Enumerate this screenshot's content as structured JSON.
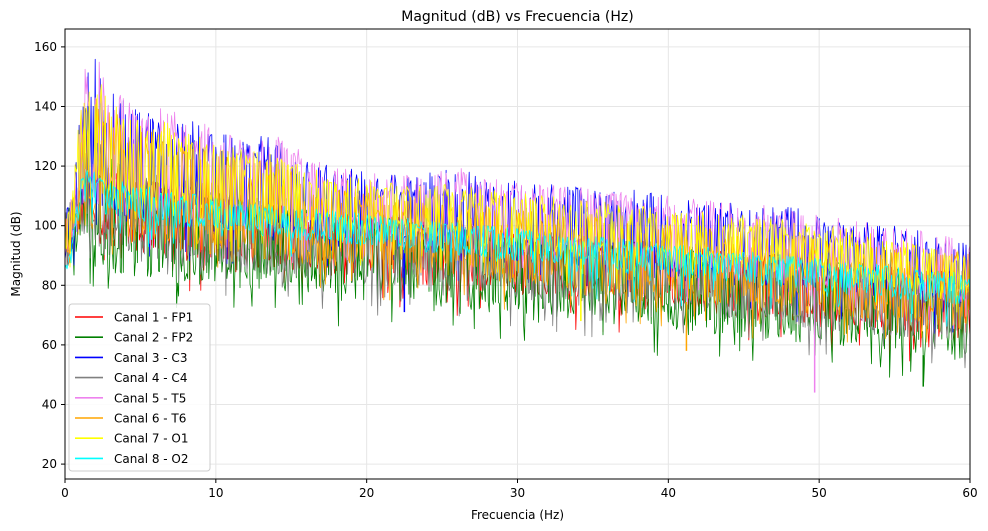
{
  "chart_data": {
    "type": "line",
    "title": "Magnitud (dB) vs Frecuencia (Hz)",
    "xlabel": "Frecuencia (Hz)",
    "ylabel": "Magnitud (dB)",
    "xlim": [
      0,
      60
    ],
    "ylim": [
      15,
      166
    ],
    "xticks": [
      0,
      10,
      20,
      30,
      40,
      50,
      60
    ],
    "yticks": [
      20,
      40,
      60,
      80,
      100,
      120,
      140,
      160
    ],
    "grid": true,
    "legend_position": "bottom-left",
    "x": [
      0,
      0.5,
      1,
      1.5,
      2,
      2.5,
      3,
      4,
      5,
      6,
      8,
      10,
      12,
      14,
      16,
      18,
      20,
      22,
      24,
      26,
      28,
      30,
      32,
      34,
      36,
      38,
      40,
      42,
      44,
      46,
      48,
      50,
      52,
      54,
      56,
      58,
      60
    ],
    "series": [
      {
        "name": "Canal 1 - FP1",
        "color": "#ff0000",
        "upper": [
          105,
          108,
          115,
          122,
          125,
          126,
          124,
          120,
          118,
          116,
          114,
          112,
          110,
          108,
          106,
          105,
          104,
          103,
          102,
          101,
          100,
          99,
          98,
          97,
          96,
          95,
          94,
          93,
          92,
          91,
          90,
          89,
          88,
          87,
          86,
          85,
          84
        ],
        "lower": [
          84,
          90,
          95,
          98,
          95,
          92,
          92,
          91,
          90,
          90,
          88,
          87,
          86,
          85,
          84,
          83,
          82,
          81,
          80,
          79,
          78,
          77,
          76,
          75,
          74,
          73,
          72,
          71,
          70,
          69,
          68,
          67,
          66,
          65,
          64,
          63,
          62
        ]
      },
      {
        "name": "Canal 2 - FP2",
        "color": "#008000",
        "upper": [
          105,
          108,
          115,
          122,
          125,
          126,
          124,
          120,
          118,
          116,
          114,
          112,
          110,
          108,
          106,
          105,
          104,
          103,
          102,
          101,
          100,
          99,
          98,
          97,
          96,
          95,
          94,
          93,
          92,
          91,
          90,
          89,
          88,
          87,
          86,
          85,
          84
        ],
        "lower": [
          84,
          88,
          92,
          90,
          86,
          84,
          84,
          83,
          82,
          82,
          81,
          80,
          79,
          78,
          77,
          76,
          75,
          74,
          73,
          72,
          71,
          70,
          69,
          68,
          67,
          66,
          65,
          64,
          63,
          62,
          61,
          60,
          59,
          58,
          57,
          56,
          55
        ]
      },
      {
        "name": "Canal 3 - C3",
        "color": "#0000ff",
        "upper": [
          105,
          110,
          140,
          155,
          158,
          150,
          146,
          144,
          142,
          140,
          136,
          132,
          128,
          132,
          122,
          120,
          118,
          117,
          118,
          120,
          116,
          115,
          114,
          113,
          112,
          112,
          111,
          109,
          108,
          107,
          107,
          104,
          102,
          101,
          99,
          97,
          95
        ],
        "lower": [
          88,
          95,
          100,
          104,
          104,
          103,
          102,
          101,
          100,
          99,
          98,
          97,
          96,
          95,
          94,
          93,
          92,
          91,
          90,
          89,
          88,
          87,
          86,
          85,
          84,
          83,
          82,
          81,
          80,
          79,
          78,
          77,
          76,
          75,
          74,
          73,
          72
        ]
      },
      {
        "name": "Canal 4 - C4",
        "color": "#808080",
        "upper": [
          106,
          110,
          122,
          128,
          130,
          128,
          126,
          122,
          120,
          118,
          116,
          114,
          112,
          110,
          108,
          106,
          105,
          104,
          103,
          102,
          101,
          100,
          99,
          98,
          97,
          96,
          95,
          94,
          93,
          92,
          91,
          90,
          89,
          88,
          87,
          86,
          85
        ],
        "lower": [
          84,
          90,
          95,
          96,
          92,
          90,
          90,
          89,
          88,
          88,
          86,
          85,
          84,
          83,
          82,
          81,
          80,
          79,
          78,
          77,
          76,
          75,
          74,
          73,
          72,
          71,
          70,
          69,
          68,
          67,
          66,
          65,
          64,
          63,
          62,
          61,
          60
        ]
      },
      {
        "name": "Canal 5 - T5",
        "color": "#ee82ee",
        "upper": [
          105,
          112,
          145,
          157,
          159,
          152,
          147,
          145,
          143,
          141,
          137,
          133,
          128,
          132,
          124,
          120,
          118,
          117,
          117,
          120,
          116,
          115,
          114,
          113,
          112,
          111,
          110,
          109,
          108,
          107,
          106,
          104,
          102,
          101,
          99,
          97,
          95
        ],
        "lower": [
          88,
          95,
          102,
          106,
          106,
          105,
          104,
          103,
          102,
          101,
          100,
          99,
          98,
          97,
          96,
          95,
          94,
          93,
          92,
          91,
          90,
          89,
          88,
          87,
          86,
          85,
          84,
          83,
          82,
          81,
          80,
          79,
          78,
          77,
          76,
          75,
          74
        ]
      },
      {
        "name": "Canal 6 - T6",
        "color": "#ffa500",
        "upper": [
          104,
          110,
          130,
          140,
          145,
          142,
          140,
          136,
          134,
          132,
          128,
          125,
          122,
          124,
          114,
          112,
          111,
          110,
          109,
          108,
          107,
          106,
          105,
          104,
          103,
          102,
          101,
          100,
          99,
          98,
          97,
          96,
          95,
          94,
          93,
          92,
          91
        ],
        "lower": [
          86,
          92,
          98,
          100,
          98,
          96,
          95,
          94,
          93,
          92,
          91,
          90,
          89,
          88,
          87,
          86,
          85,
          84,
          83,
          82,
          81,
          80,
          79,
          78,
          77,
          76,
          75,
          74,
          73,
          72,
          71,
          70,
          69,
          68,
          67,
          66,
          65
        ]
      },
      {
        "name": "Canal 7 - O1",
        "color": "#ffff00",
        "upper": [
          104,
          112,
          140,
          150,
          154,
          148,
          144,
          140,
          138,
          136,
          132,
          128,
          125,
          126,
          120,
          118,
          116,
          115,
          114,
          114,
          112,
          111,
          110,
          109,
          108,
          107,
          106,
          105,
          104,
          103,
          102,
          101,
          99,
          97,
          95,
          93,
          91
        ],
        "lower": [
          88,
          96,
          104,
          108,
          108,
          107,
          106,
          105,
          104,
          103,
          102,
          101,
          100,
          99,
          98,
          97,
          96,
          95,
          94,
          93,
          92,
          91,
          90,
          89,
          88,
          87,
          86,
          85,
          84,
          83,
          82,
          81,
          80,
          79,
          78,
          77,
          76
        ]
      },
      {
        "name": "Canal 8 - O2",
        "color": "#00ffff",
        "upper": [
          86,
          95,
          117,
          119,
          118,
          117,
          116,
          115,
          114,
          113,
          111,
          110,
          108,
          107,
          106,
          105,
          104,
          103,
          102,
          101,
          100,
          99,
          98,
          97,
          96,
          95,
          94,
          93,
          92,
          91,
          90,
          89,
          88,
          87,
          86,
          85,
          84
        ],
        "lower": [
          84,
          88,
          106,
          106,
          105,
          104,
          103,
          102,
          101,
          100,
          99,
          98,
          97,
          96,
          95,
          94,
          93,
          92,
          91,
          90,
          89,
          88,
          87,
          86,
          85,
          84,
          83,
          82,
          81,
          80,
          79,
          78,
          77,
          76,
          75,
          74,
          73
        ]
      }
    ],
    "notable_drops": [
      {
        "series": 4,
        "x": 49.7,
        "y": 44
      },
      {
        "series": 1,
        "x": 56.9,
        "y": 46
      },
      {
        "series": 2,
        "x": 22.5,
        "y": 71
      },
      {
        "series": 5,
        "x": 41.2,
        "y": 58
      },
      {
        "series": 6,
        "x": 34.2,
        "y": 68
      }
    ]
  }
}
